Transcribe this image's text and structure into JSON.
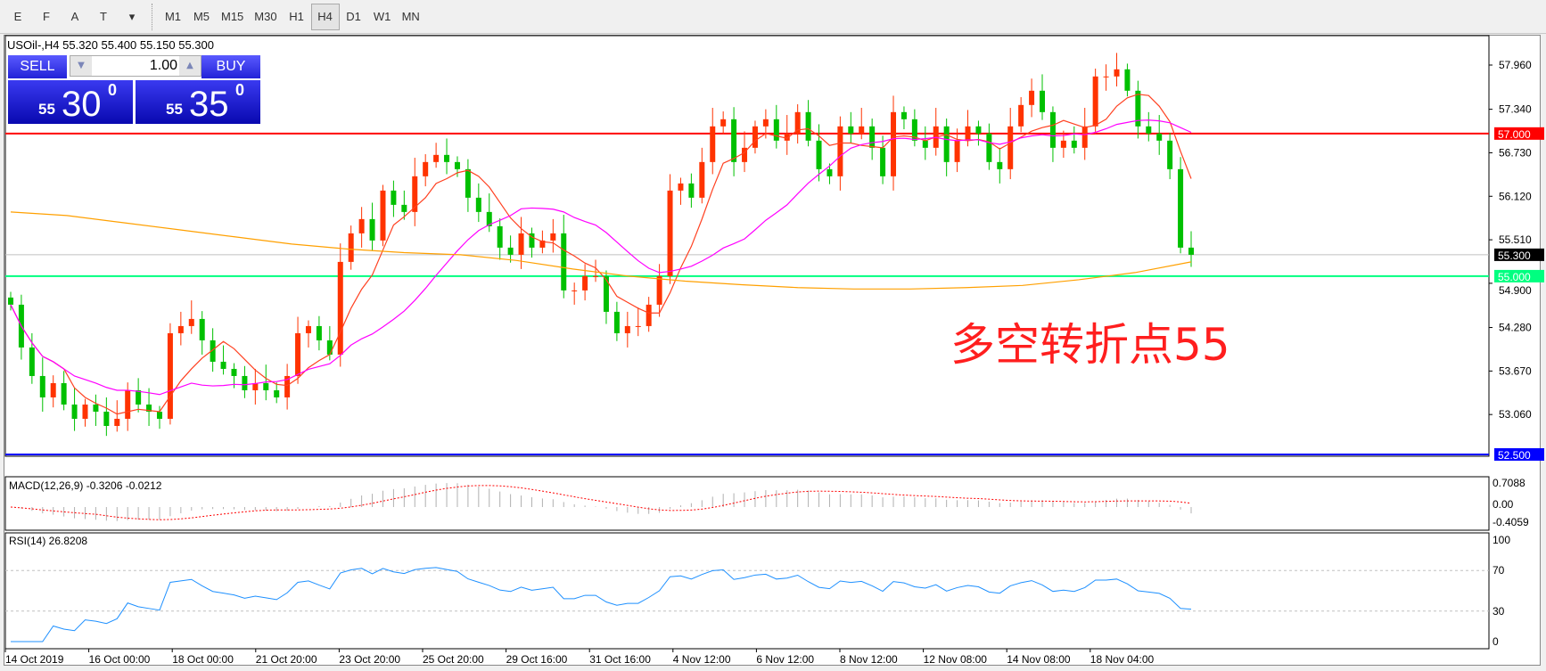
{
  "toolbar": {
    "tools": [
      {
        "icon": "fibonacci-expansion-icon",
        "label": "E"
      },
      {
        "icon": "fibonacci-fan-icon",
        "label": "F"
      },
      {
        "icon": "text-icon",
        "label": "A"
      },
      {
        "icon": "text-label-icon",
        "label": "T"
      },
      {
        "icon": "arrows-dropdown-icon",
        "label": "▾"
      }
    ],
    "timeframes": [
      "M1",
      "M5",
      "M15",
      "M30",
      "H1",
      "H4",
      "D1",
      "W1",
      "MN"
    ],
    "active_timeframe": "H4"
  },
  "chart": {
    "symbol_line": "USOil-,H4  55.320 55.400 55.150 55.300",
    "trade": {
      "sell": "SELL",
      "buy": "BUY",
      "lot": "1.00",
      "sell_small": "55",
      "sell_big": "30",
      "sell_sup": "0",
      "buy_small": "55",
      "buy_big": "35",
      "buy_sup": "0"
    },
    "annotation": "多空转折点55",
    "macd_label": "MACD(12,26,9) -0.3206 -0.0212",
    "rsi_label": "RSI(14) 26.8208"
  },
  "colors": {
    "bull": "#ff3300",
    "bear": "#00c000",
    "red_line": "#ff0000",
    "green_line": "#00ff80",
    "blue_line": "#0000ff",
    "ma_fast": "#ff4020",
    "ma_mid": "#ff00ff",
    "ma_slow": "#ffa000",
    "rsi": "#1e90ff",
    "macd_signal": "#ff0000"
  },
  "chart_data": {
    "type": "candlestick",
    "price_ticks": [
      "57.960",
      "57.340",
      "56.730",
      "56.120",
      "55.510",
      "54.900",
      "54.280",
      "53.670",
      "53.060"
    ],
    "ylim": [
      52.5,
      57.96
    ],
    "hlines": [
      {
        "value": 57.0,
        "label": "57.000",
        "color": "#ff0000"
      },
      {
        "value": 55.0,
        "label": "55.000",
        "color": "#00ff80"
      },
      {
        "value": 52.5,
        "label": "52.500",
        "color": "#0000ff"
      }
    ],
    "current_price": {
      "value": 55.3,
      "label": "55.300"
    },
    "x_labels": [
      "14 Oct 2019",
      "16 Oct 00:00",
      "18 Oct 00:00",
      "21 Oct 20:00",
      "23 Oct 20:00",
      "25 Oct 20:00",
      "29 Oct 16:00",
      "31 Oct 16:00",
      "4 Nov 12:00",
      "6 Nov 12:00",
      "8 Nov 12:00",
      "12 Nov 08:00",
      "14 Nov 08:00",
      "18 Nov 04:00"
    ],
    "closes": [
      54.6,
      54.0,
      53.6,
      53.3,
      53.5,
      53.2,
      53.0,
      53.2,
      53.1,
      52.9,
      53.0,
      53.4,
      53.2,
      53.1,
      53.0,
      54.2,
      54.3,
      54.4,
      54.1,
      53.8,
      53.7,
      53.6,
      53.4,
      53.5,
      53.4,
      53.3,
      53.6,
      54.2,
      54.3,
      54.1,
      53.9,
      55.2,
      55.6,
      55.8,
      55.5,
      56.2,
      56.0,
      55.9,
      56.4,
      56.6,
      56.7,
      56.6,
      56.5,
      56.1,
      55.9,
      55.7,
      55.4,
      55.3,
      55.6,
      55.4,
      55.5,
      55.6,
      54.8,
      54.8,
      55.0,
      55.0,
      54.5,
      54.2,
      54.3,
      54.3,
      54.6,
      55.0,
      56.2,
      56.3,
      56.1,
      56.6,
      57.1,
      57.2,
      56.6,
      56.8,
      57.1,
      57.2,
      56.9,
      57.0,
      57.3,
      56.9,
      56.5,
      56.4,
      57.1,
      57.0,
      57.1,
      56.8,
      56.4,
      57.3,
      57.2,
      56.9,
      56.8,
      57.1,
      56.6,
      56.9,
      57.1,
      57.0,
      56.6,
      56.5,
      57.1,
      57.4,
      57.6,
      57.3,
      56.8,
      56.9,
      56.8,
      57.1,
      57.8,
      57.8,
      57.9,
      57.6,
      57.1,
      57.0,
      56.9,
      56.5,
      55.4,
      55.3
    ],
    "slow_ma": [
      55.9,
      55.85,
      55.75,
      55.65,
      55.55,
      55.45,
      55.38,
      55.33,
      55.3,
      55.22,
      55.1,
      55.0,
      54.93,
      54.88,
      54.84,
      54.82,
      54.82,
      54.84,
      54.87,
      54.95,
      55.05,
      55.2
    ],
    "macd_ticks": [
      "0.7088",
      "0.00",
      "-0.4059"
    ],
    "rsi_ticks": [
      "100",
      "70",
      "30",
      "0"
    ],
    "rsi_levels": [
      70,
      30
    ]
  }
}
